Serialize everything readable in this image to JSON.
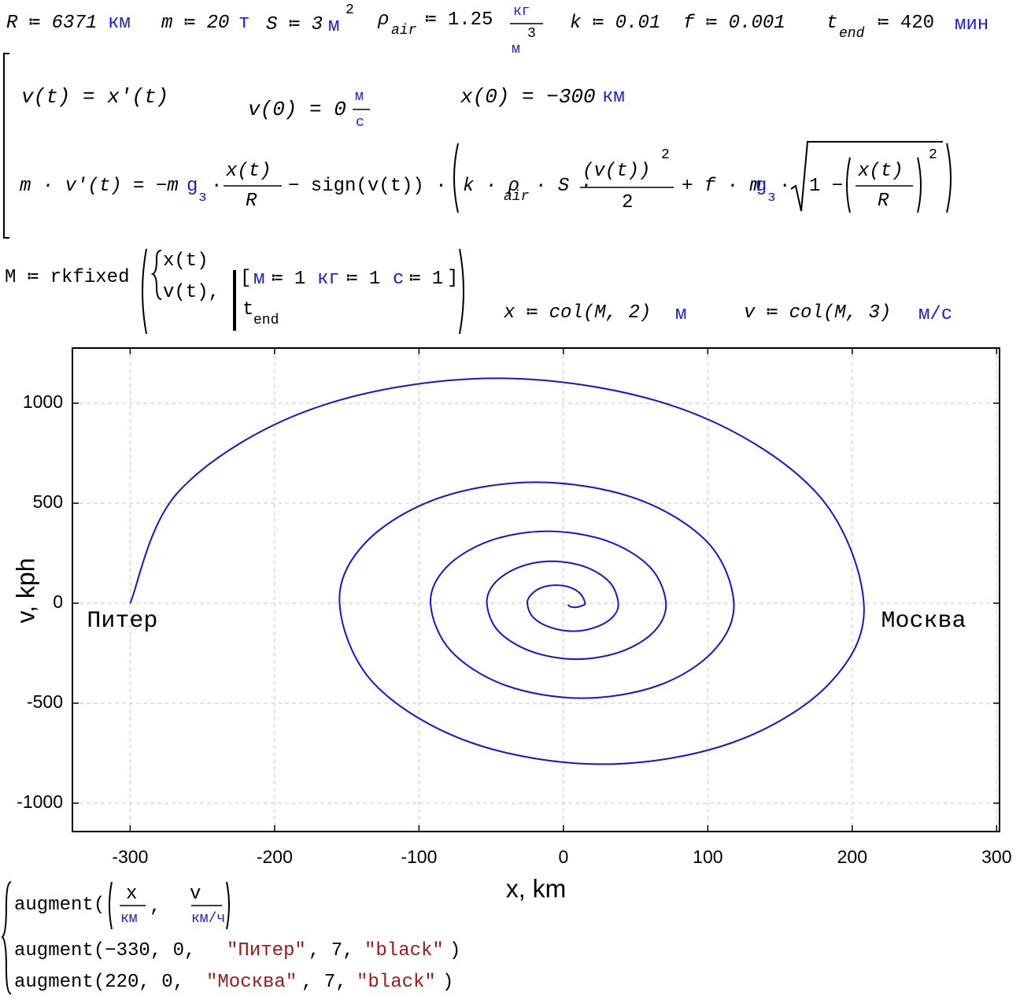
{
  "worksheet": {
    "t1": "R ≔ 6371",
    "u1": "км",
    "t2": "m ≔ 20",
    "u2": "т",
    "t3": "S ≔ 3",
    "u3": "м",
    "p3": "2",
    "t4a": "ρ",
    "t4s": "air",
    "t4b": "≔ 1.25",
    "u4n": "кг",
    "u4d": "м",
    "u4p": "3",
    "t5": "k ≔ 0.01",
    "t6": "f ≔ 0.001",
    "t7a": "t",
    "t7s": "end",
    "t7b": "≔ 420",
    "u7": "мин",
    "e1": "v(t) = x′(t)",
    "e2": "v(0) = 0",
    "e2n": "м",
    "e2d": "с",
    "e3": "x(0) = −300",
    "e3u": "км",
    "e4a": "m · v′(t) = −m",
    "g": "g",
    "gs": "з",
    "dot": "·",
    "e4fn": "x(t)",
    "e4fd": "R",
    "e4c": "− sign(v(t)) ·",
    "e4k": "k · ρ",
    "e4ks": "air",
    "e4s": "· S ·",
    "e4vn": "(v(t))",
    "e4vp": "2",
    "e4vd": "2",
    "e4f": "+ f · m",
    "e4one": "1 −",
    "e4rn": "x(t)",
    "e4rd": "R",
    "e4rp": "2",
    "m1": "M ≔ rkfixed",
    "m2": "x(t)",
    "m3": "v(t),",
    "m4": "[",
    "m5u": "м",
    "m5": "≔ 1",
    "m6u": "кг",
    "m6": "≔ 1",
    "m7u": "с",
    "m7": "≔ 1",
    "m8": "]",
    "m9": "t",
    "m9s": "end",
    "c1": "x ≔ col(M, 2)",
    "c1u": "м",
    "c2": "v ≔ col(M, 3)",
    "c2u": "м/с",
    "a1": "augment(",
    "a1xn": "x",
    "a1xd": "км",
    "a1c": ",",
    "a1vn": "v",
    "a1vd": "км/ч",
    "a2": "augment(−330, 0, ",
    "a2s": "\"Питер\"",
    "a2m": ", 7, ",
    "a2c": "\"black\"",
    "a2e": ")",
    "a3": "augment(220, 0, ",
    "a3s": "\"Москва\"",
    "a3m": ", 7, ",
    "a3c": "\"black\"",
    "a3e": ")"
  },
  "chart_data": {
    "type": "line",
    "x_label": "x, km",
    "y_label": "v, kph",
    "xlim": [
      -340,
      302
    ],
    "ylim": [
      -1142,
      1276
    ],
    "xticks": [
      -300,
      -200,
      -100,
      0,
      100,
      200,
      300
    ],
    "yticks": [
      -1000,
      -500,
      0,
      500,
      1000
    ],
    "grid": true,
    "color": "#1414dc",
    "x": [
      -300,
      -266,
      -173,
      -46,
      81,
      174,
      208,
      184,
      117,
      27,
      -64,
      -131,
      -155,
      -137,
      -87,
      -19,
      50,
      100,
      118,
      104,
      66,
      13,
      -40,
      -78,
      -92,
      -81,
      -51,
      -11,
      30,
      60,
      71,
      63,
      40,
      9,
      -22,
      -45,
      -53,
      -47,
      -30,
      -8,
      15,
      32,
      38,
      34,
      22,
      7,
      -9,
      -21,
      -25,
      -22,
      -15,
      -5,
      5,
      12,
      15,
      13,
      9,
      5,
      3
    ],
    "values": [
      0,
      562,
      974,
      1125,
      974,
      562,
      0,
      -403,
      -697,
      -805,
      -697,
      -403,
      0,
      303,
      524,
      605,
      524,
      303,
      0,
      -238,
      -411,
      -475,
      -411,
      -238,
      0,
      180,
      312,
      360,
      312,
      180,
      0,
      -140,
      -242,
      -280,
      -242,
      -140,
      0,
      105,
      182,
      210,
      182,
      105,
      0,
      -70,
      -121,
      -140,
      -121,
      -70,
      0,
      45,
      78,
      90,
      78,
      45,
      0,
      -12,
      -20,
      -18,
      -8
    ],
    "annotations": [
      {
        "text": "Питер",
        "x": -330,
        "y": 0
      },
      {
        "text": "Москва",
        "x": 220,
        "y": 0
      }
    ]
  }
}
